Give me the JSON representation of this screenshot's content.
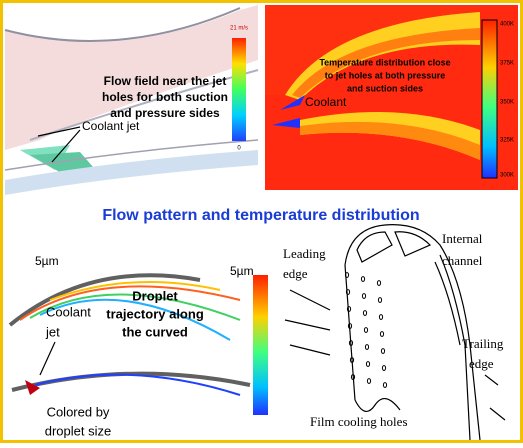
{
  "title": "Flow pattern and temperature distribution",
  "flow_field": {
    "caption": [
      "Flow field near the jet",
      "holes for both suction",
      "and pressure sides"
    ],
    "label": "Coolant jet",
    "colorbar_max": "21 m/s",
    "colorbar_min": "0"
  },
  "temperature": {
    "caption": [
      "Temperature distribution close",
      "to jet holes at both pressure",
      "and suction sides"
    ],
    "label": "Coolant",
    "colorbar": [
      "400K",
      "375K",
      "350K",
      "325K",
      "300K"
    ]
  },
  "droplet": {
    "scale_left": "5µm",
    "scale_right": "5µm",
    "label": [
      "Coolant",
      "jet"
    ],
    "caption": [
      "Droplet",
      "trajectory along",
      "the curved"
    ],
    "note": [
      "Colored by",
      "droplet size"
    ]
  },
  "blade": {
    "leading_edge": [
      "Leading",
      "edge"
    ],
    "internal_channel": [
      "Internal",
      "channel"
    ],
    "trailing_edge": [
      "Trailing",
      "edge"
    ],
    "holes": "Film cooling holes"
  }
}
